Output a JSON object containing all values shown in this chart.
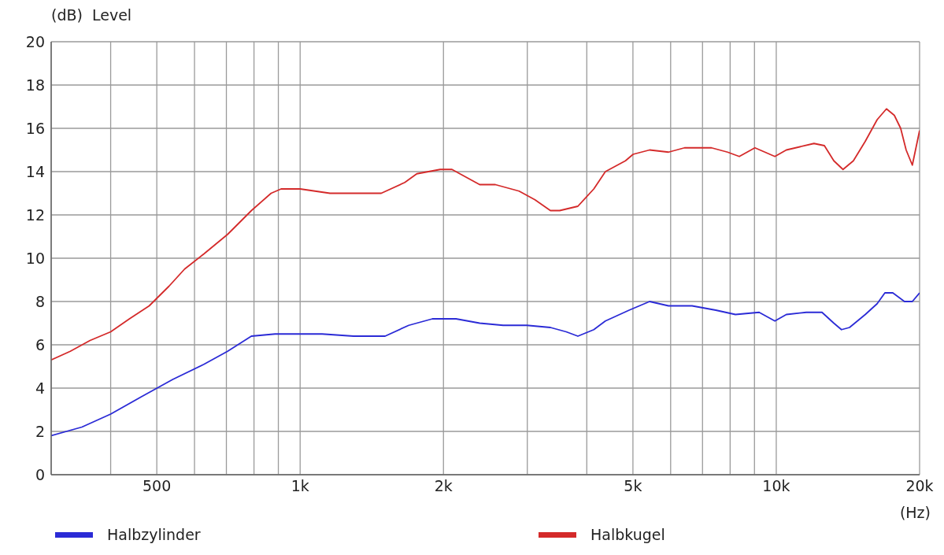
{
  "chart_data": {
    "type": "line",
    "ylabel": "(dB)  Level",
    "xlabel": "(Hz)",
    "log": "x",
    "grid": true,
    "legend": "bottom",
    "marker": "none",
    "line_style": "solid",
    "xlim": [
      300,
      20000
    ],
    "xticks": [
      {
        "value": 400,
        "label": null
      },
      {
        "value": 500,
        "label": "500"
      },
      {
        "value": 600,
        "label": null
      },
      {
        "value": 700,
        "label": null
      },
      {
        "value": 800,
        "label": null
      },
      {
        "value": 900,
        "label": null
      },
      {
        "value": 1000,
        "label": "1k"
      },
      {
        "value": 2000,
        "label": "2k"
      },
      {
        "value": 3000,
        "label": null
      },
      {
        "value": 4000,
        "label": null
      },
      {
        "value": 5000,
        "label": "5k"
      },
      {
        "value": 6000,
        "label": null
      },
      {
        "value": 7000,
        "label": null
      },
      {
        "value": 8000,
        "label": null
      },
      {
        "value": 9000,
        "label": null
      },
      {
        "value": 10000,
        "label": "10k"
      },
      {
        "value": 20000,
        "label": "20k"
      }
    ],
    "ylim": [
      0,
      20
    ],
    "yticks": [
      0,
      2,
      4,
      6,
      8,
      10,
      12,
      14,
      16,
      18,
      20
    ],
    "series": [
      {
        "name": "Halbzylinder",
        "color": "#2b2bd6",
        "x": [
          300,
          348,
          400,
          464,
          540,
          628,
          704,
          790,
          886,
          1000,
          1112,
          1295,
          1508,
          1691,
          1896,
          2125,
          2383,
          2669,
          2993,
          3355,
          3622,
          3831,
          4138,
          4376,
          4909,
          5420,
          5939,
          6656,
          7465,
          8208,
          9205,
          9933,
          10500,
          11560,
          12475,
          13210,
          13710,
          14250,
          15380,
          16290,
          16910,
          17570,
          18590,
          19310,
          20000
        ],
        "values": [
          1.8,
          2.2,
          2.8,
          3.6,
          4.4,
          5.1,
          5.7,
          6.4,
          6.5,
          6.5,
          6.5,
          6.4,
          6.4,
          6.9,
          7.2,
          7.2,
          7.0,
          6.9,
          6.9,
          6.8,
          6.6,
          6.4,
          6.7,
          7.1,
          7.6,
          8.0,
          7.8,
          7.8,
          7.6,
          7.4,
          7.5,
          7.1,
          7.4,
          7.5,
          7.5,
          7.0,
          6.7,
          6.8,
          7.4,
          7.9,
          8.4,
          8.4,
          8.0,
          8.0,
          8.4
        ]
      },
      {
        "name": "Halbkugel",
        "color": "#d42a2a",
        "x": [
          300,
          329,
          362,
          400,
          438,
          482,
          530,
          572,
          628,
          704,
          790,
          869,
          912,
          1000,
          1155,
          1295,
          1480,
          1659,
          1758,
          1968,
          2084,
          2383,
          2570,
          2883,
          3113,
          3355,
          3508,
          3831,
          4138,
          4376,
          4822,
          5004,
          5420,
          5939,
          6417,
          7311,
          7901,
          8363,
          9020,
          9933,
          10500,
          12000,
          12620,
          13210,
          13810,
          14520,
          15380,
          16290,
          17040,
          17700,
          18250,
          18740,
          19310,
          20000
        ],
        "values": [
          5.3,
          5.7,
          6.2,
          6.6,
          7.2,
          7.8,
          8.7,
          9.5,
          10.2,
          11.1,
          12.2,
          13.0,
          13.2,
          13.2,
          13.0,
          13.0,
          13.0,
          13.5,
          13.9,
          14.1,
          14.1,
          13.4,
          13.4,
          13.1,
          12.7,
          12.2,
          12.2,
          12.4,
          13.2,
          14.0,
          14.5,
          14.8,
          15.0,
          14.9,
          15.1,
          15.1,
          14.9,
          14.7,
          15.1,
          14.7,
          15.0,
          15.3,
          15.2,
          14.5,
          14.1,
          14.5,
          15.4,
          16.4,
          16.9,
          16.6,
          16.0,
          15.0,
          14.3,
          15.9
        ]
      }
    ]
  }
}
